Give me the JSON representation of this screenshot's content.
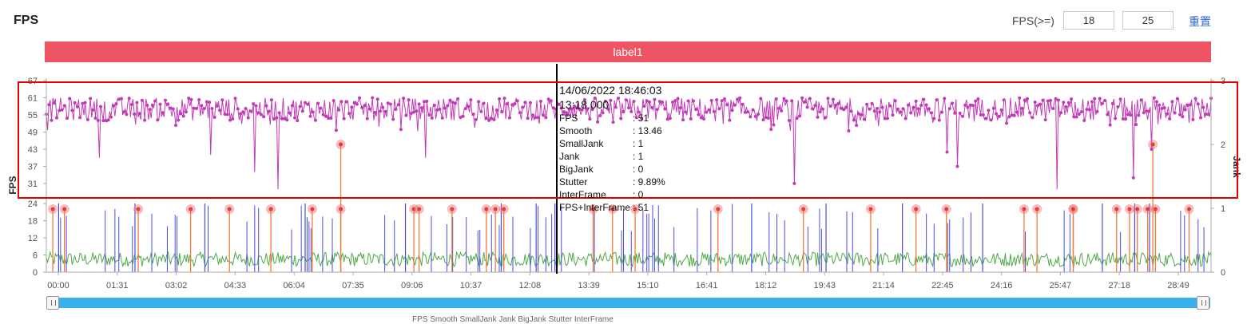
{
  "header": {
    "title": "FPS",
    "filter_label": "FPS(>=)",
    "threshold_low": "18",
    "threshold_high": "25",
    "reset_label": "重置"
  },
  "banner": {
    "label": "label1"
  },
  "tooltip": {
    "datetime": "14/06/2022 18:46:03",
    "elapsed": "13:18.000",
    "rows": [
      {
        "key": "FPS",
        "value": ": 51"
      },
      {
        "key": "Smooth",
        "value": ": 13.46"
      },
      {
        "key": "SmallJank",
        "value": ": 1"
      },
      {
        "key": "Jank",
        "value": ": 1"
      },
      {
        "key": "BigJank",
        "value": ": 0"
      },
      {
        "key": "Stutter",
        "value": ": 9.89%"
      },
      {
        "key": "InterFrame",
        "value": ": 0"
      },
      {
        "key": "FPS+InterFrame",
        "value": ": 51"
      }
    ]
  },
  "legend_stub": "FPS   Smooth   SmallJank   Jank   BigJank   Stutter   InterFrame",
  "colors": {
    "fps": "#c23bb6",
    "smooth": "#4daa45",
    "small_jank": "#4a4ee0",
    "jank": "#f07a3a",
    "big_jank": "#ef7b7b",
    "banner": "#ed5565",
    "highlight": "#e60000",
    "scroll": "#3ab0ec"
  },
  "chart_data": {
    "type": "line",
    "y_axis": {
      "title": "FPS",
      "ticks": [
        0,
        6,
        12,
        18,
        24,
        31,
        37,
        43,
        49,
        55,
        61,
        67
      ],
      "range": [
        0,
        67
      ]
    },
    "y2_axis": {
      "title": "Jank",
      "ticks": [
        0,
        1,
        2,
        3
      ],
      "range": [
        0,
        3
      ]
    },
    "x_axis": {
      "ticks": [
        "00:00",
        "01:31",
        "03:02",
        "04:33",
        "06:04",
        "07:35",
        "09:06",
        "10:37",
        "12:08",
        "13:39",
        "15:10",
        "16:41",
        "18:12",
        "19:43",
        "21:14",
        "22:45",
        "24:16",
        "25:47",
        "27:18",
        "28:49"
      ],
      "range_seconds": [
        0,
        1800
      ]
    },
    "cursor_time_seconds": 798,
    "series": [
      {
        "name": "FPS",
        "axis": "left",
        "typical_range": [
          53,
          61
        ],
        "dips": [
          [
            81,
            40
          ],
          [
            254,
            41
          ],
          [
            322,
            35
          ],
          [
            358,
            29
          ],
          [
            586,
            40
          ],
          [
            1156,
            31
          ],
          [
            1392,
            42
          ],
          [
            1408,
            37
          ],
          [
            1562,
            29
          ],
          [
            1679,
            33
          ],
          [
            1708,
            43
          ]
        ]
      },
      {
        "name": "Smooth",
        "axis": "left",
        "typical_range": [
          2,
          7
        ]
      },
      {
        "name": "SmallJank",
        "axis": "left",
        "spikes": [
          [
            19,
            24
          ],
          [
            137,
            24
          ],
          [
            245,
            24
          ],
          [
            400,
            24
          ],
          [
            455,
            24
          ],
          [
            555,
            24
          ],
          [
            703,
            24
          ],
          [
            757,
            24
          ],
          [
            786,
            24
          ],
          [
            1090,
            24
          ],
          [
            1205,
            24
          ],
          [
            1323,
            24
          ],
          [
            1447,
            24
          ],
          [
            1632,
            24
          ],
          [
            1682,
            24
          ],
          [
            1705,
            24
          ]
        ]
      },
      {
        "name": "Jank",
        "axis": "right",
        "events": [
          [
            10,
            1
          ],
          [
            28,
            1
          ],
          [
            142,
            1
          ],
          [
            223,
            1
          ],
          [
            283,
            1
          ],
          [
            347,
            1
          ],
          [
            411,
            1
          ],
          [
            455,
            1
          ],
          [
            568,
            1
          ],
          [
            576,
            1
          ],
          [
            627,
            1
          ],
          [
            680,
            1
          ],
          [
            694,
            1
          ],
          [
            707,
            1
          ],
          [
            845,
            1
          ],
          [
            875,
            1
          ],
          [
            910,
            1
          ],
          [
            1038,
            1
          ],
          [
            1170,
            1
          ],
          [
            1274,
            1
          ],
          [
            1344,
            1
          ],
          [
            1391,
            1
          ],
          [
            1511,
            1
          ],
          [
            1531,
            1
          ],
          [
            1587,
            1
          ],
          [
            1587,
            1
          ],
          [
            1654,
            1
          ],
          [
            1674,
            1
          ],
          [
            1686,
            1
          ],
          [
            1702,
            1
          ],
          [
            1714,
            1
          ],
          [
            1766,
            1
          ]
        ]
      },
      {
        "name": "BigJank",
        "axis": "right",
        "events": [
          [
            455,
            2
          ],
          [
            1710,
            2
          ]
        ]
      },
      {
        "name": "Stutter",
        "axis": "right"
      },
      {
        "name": "InterFrame",
        "axis": "right"
      }
    ]
  }
}
